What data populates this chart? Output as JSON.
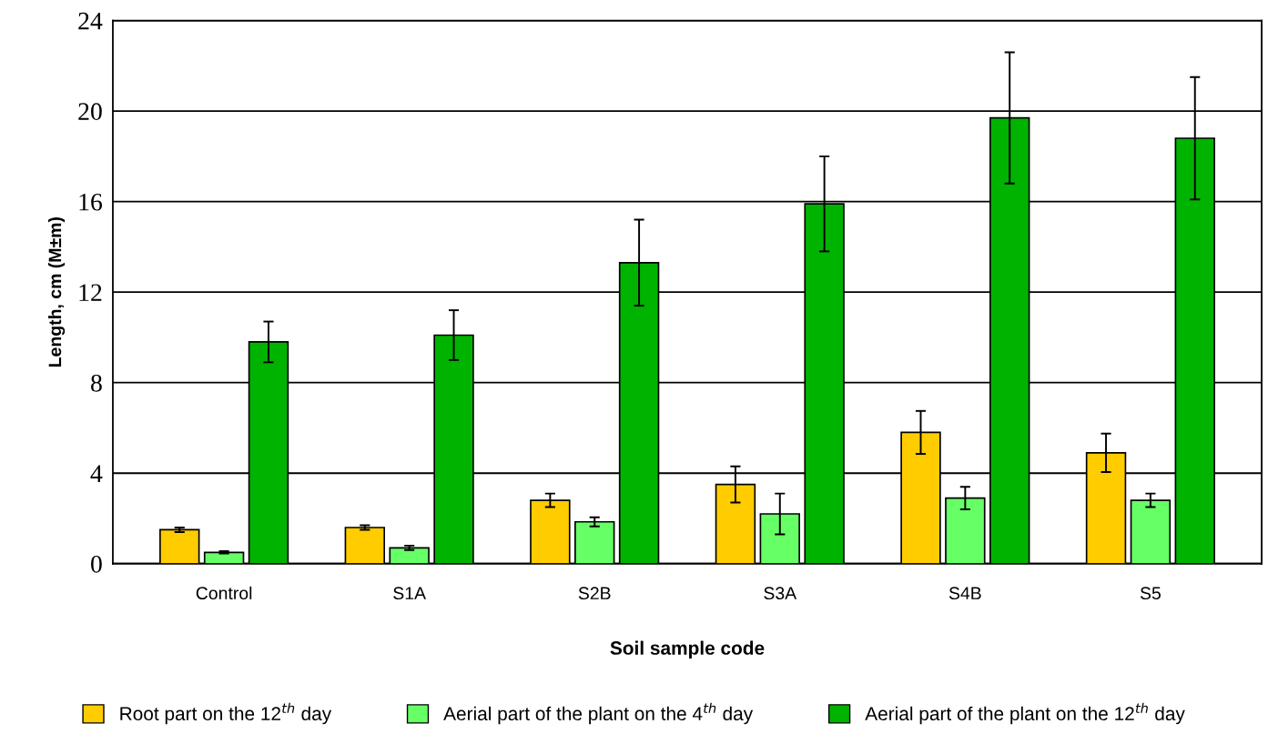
{
  "chart_data": {
    "type": "bar",
    "xlabel": "Soil sample code",
    "ylabel": "Length, cm (M±m)",
    "categories": [
      "Control",
      "S1A",
      "S2B",
      "S3A",
      "S4B",
      "S5"
    ],
    "series": [
      {
        "name": "Root part on the 12$^{th}$ day",
        "color": "#ffcc00",
        "values": [
          1.5,
          1.6,
          2.8,
          3.5,
          5.8,
          4.9
        ],
        "errors": [
          0.1,
          0.1,
          0.3,
          0.8,
          0.95,
          0.85
        ]
      },
      {
        "name": "Aerial part of the plant on the 4$^{th}$ day",
        "color": "#66ff66",
        "values": [
          0.5,
          0.7,
          1.85,
          2.2,
          2.9,
          2.8
        ],
        "errors": [
          0.05,
          0.1,
          0.2,
          0.9,
          0.5,
          0.3
        ]
      },
      {
        "name": "Aerial part of the plant on the 12$^{th}$ day",
        "color": "#00b300",
        "values": [
          9.8,
          10.1,
          13.3,
          15.9,
          19.7,
          18.8
        ],
        "errors": [
          0.9,
          1.1,
          1.9,
          2.1,
          2.9,
          2.7
        ]
      }
    ],
    "ylim": [
      0,
      24
    ],
    "yticks": [
      0,
      4,
      8,
      12,
      16,
      20,
      24
    ],
    "grid": "y",
    "legend": "bottom"
  }
}
